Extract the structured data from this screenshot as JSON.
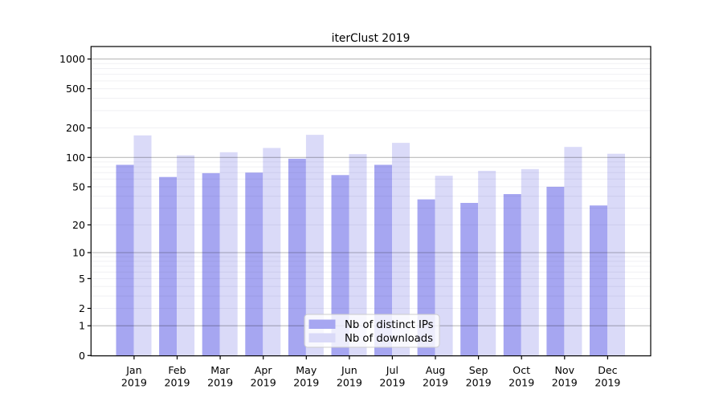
{
  "page": {
    "background": "#ffffff"
  },
  "chart_data": {
    "type": "bar",
    "title": "iterClust 2019",
    "categories": [
      "Jan 2019",
      "Feb 2019",
      "Mar 2019",
      "Apr 2019",
      "May 2019",
      "Jun 2019",
      "Jul 2019",
      "Aug 2019",
      "Sep 2019",
      "Oct 2019",
      "Nov 2019",
      "Dec 2019"
    ],
    "series": [
      {
        "name": "Nb of distinct IPs",
        "color": "#a6a6f1",
        "values": [
          84,
          63,
          69,
          70,
          97,
          66,
          84,
          37,
          34,
          42,
          50,
          32
        ]
      },
      {
        "name": "Nb of downloads",
        "color": "#dadaf8",
        "values": [
          168,
          105,
          113,
          125,
          170,
          108,
          141,
          65,
          73,
          76,
          128,
          109
        ]
      }
    ],
    "xlabel": "",
    "ylabel": "",
    "yscale": "log10(1+x)",
    "ylim": [
      0,
      1338
    ],
    "yticks": [
      0,
      1,
      2,
      5,
      10,
      20,
      50,
      100,
      200,
      500,
      1000
    ],
    "minor_gridlines": [
      2,
      3,
      4,
      5,
      6,
      7,
      8,
      9,
      20,
      30,
      40,
      50,
      60,
      70,
      80,
      90,
      200,
      300,
      400,
      500,
      600,
      700,
      800,
      900
    ],
    "major_gridlines": [
      1,
      10,
      100,
      1000
    ],
    "grid": true,
    "legend_position": "inside-bottom-center",
    "colors": {
      "frame": "#000000",
      "major_grid_rgba": "rgba(0,0,0,0.27)",
      "minor_grid_rgba": "rgba(70,70,110,0.08)",
      "legend_fill": "rgba(255,255,255,0.8)",
      "legend_border": "#cccccc"
    }
  }
}
